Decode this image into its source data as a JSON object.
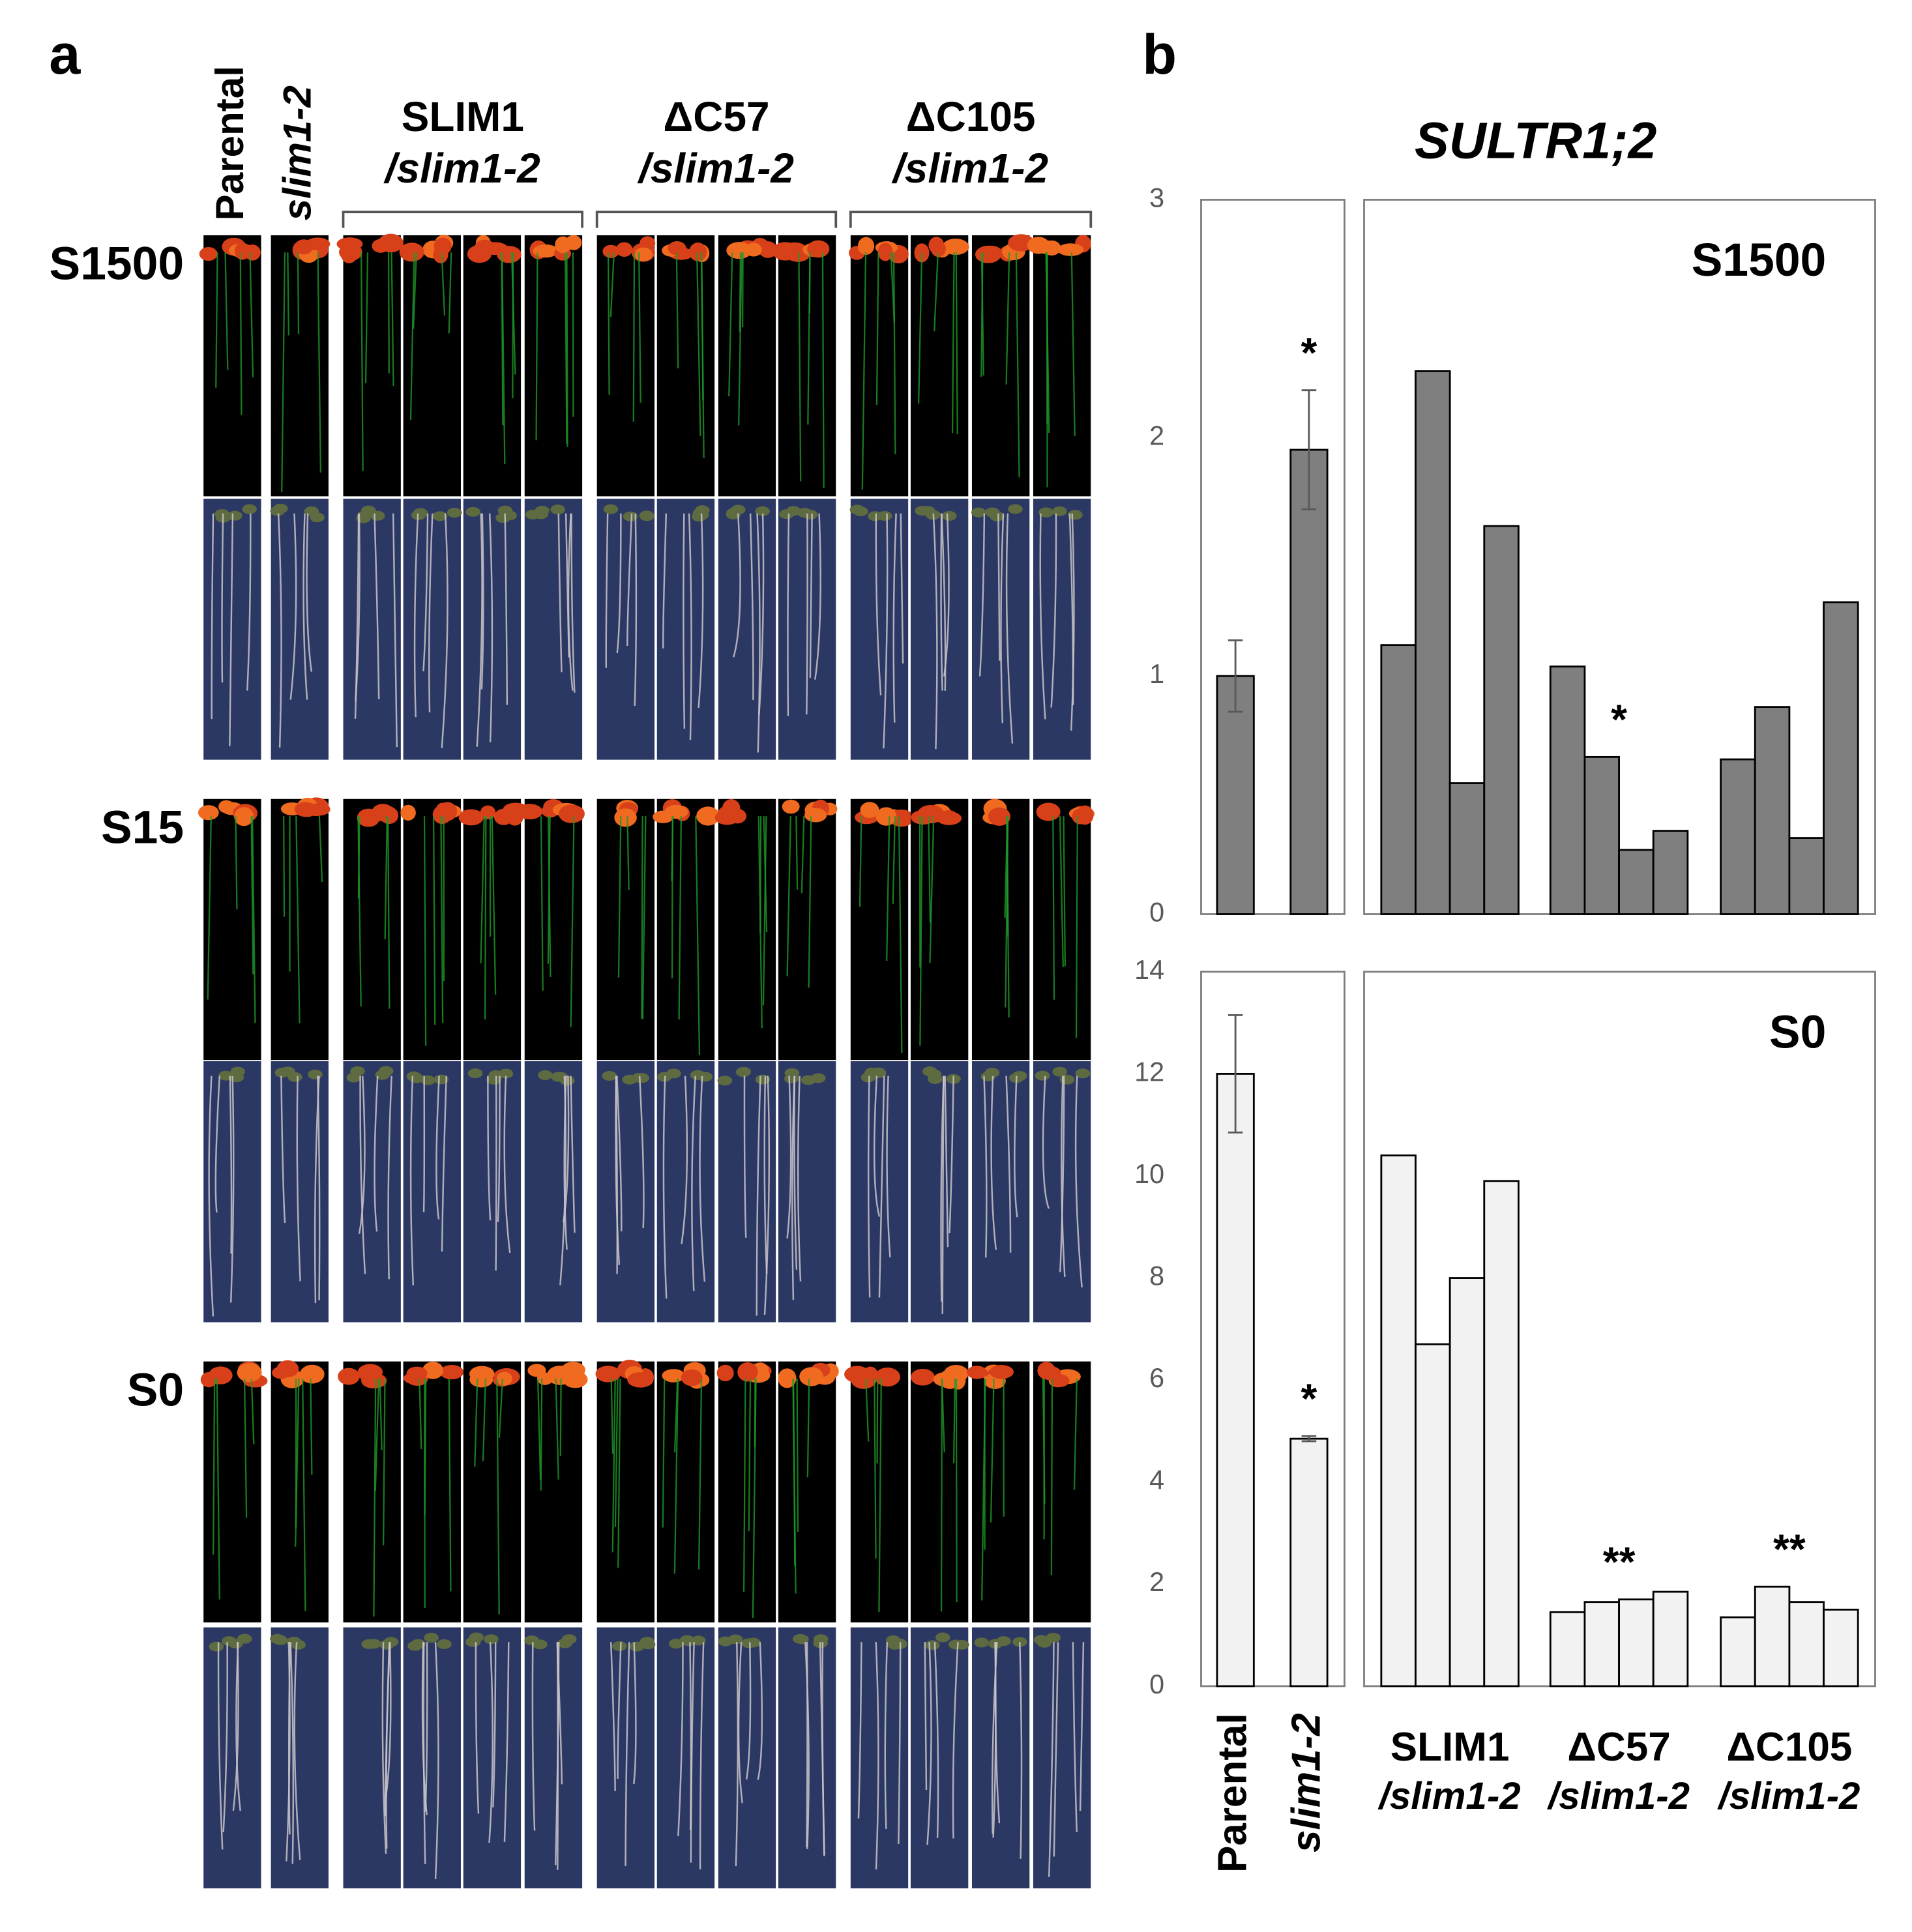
{
  "panel_a": {
    "label": "a",
    "lanes": [
      "Parental",
      "slim1-2"
    ],
    "groups": [
      {
        "name": "SLIM1",
        "sub": "/slim1-2"
      },
      {
        "name": "ΔC57",
        "sub": "/slim1-2"
      },
      {
        "name": "ΔC105",
        "sub": "/slim1-2"
      }
    ],
    "rows": [
      "S1500",
      "S15",
      "S0"
    ]
  },
  "panel_b": {
    "label": "b",
    "title": "SULTR1;2"
  },
  "chart_data": [
    {
      "type": "bar",
      "panel_label": "S1500",
      "color": "#7f7f7f",
      "ylim": [
        0,
        3
      ],
      "yticks": [
        0,
        1,
        2,
        3
      ],
      "groups": [
        {
          "values": [
            1.0
          ],
          "errors": [
            0.15
          ]
        },
        {
          "values": [
            1.95
          ],
          "errors": [
            0.25
          ],
          "annotation": "*"
        },
        {
          "values": [
            1.13,
            2.28,
            0.55,
            1.63
          ]
        },
        {
          "values": [
            1.04,
            0.66,
            0.27,
            0.35
          ],
          "annotation": "*"
        },
        {
          "values": [
            0.65,
            0.87,
            0.32,
            1.31
          ]
        }
      ]
    },
    {
      "type": "bar",
      "panel_label": "S0",
      "color": "#f2f2f2",
      "ylim": [
        0,
        14
      ],
      "yticks": [
        0,
        2,
        4,
        6,
        8,
        10,
        12,
        14
      ],
      "groups": [
        {
          "name": "Parental",
          "values": [
            12.0
          ],
          "errors": [
            1.15
          ]
        },
        {
          "name": "slim1-2",
          "values": [
            4.85
          ],
          "errors": [
            0.05
          ],
          "annotation": "*"
        },
        {
          "name": "SLIM1",
          "sub": "/slim1-2",
          "values": [
            10.4,
            6.7,
            8.0,
            9.9
          ]
        },
        {
          "name": "ΔC57",
          "sub": "/slim1-2",
          "values": [
            1.45,
            1.65,
            1.7,
            1.85
          ],
          "annotation": "**"
        },
        {
          "name": "ΔC105",
          "sub": "/slim1-2",
          "values": [
            1.35,
            1.95,
            1.65,
            1.5
          ],
          "annotation": "**"
        }
      ]
    }
  ]
}
